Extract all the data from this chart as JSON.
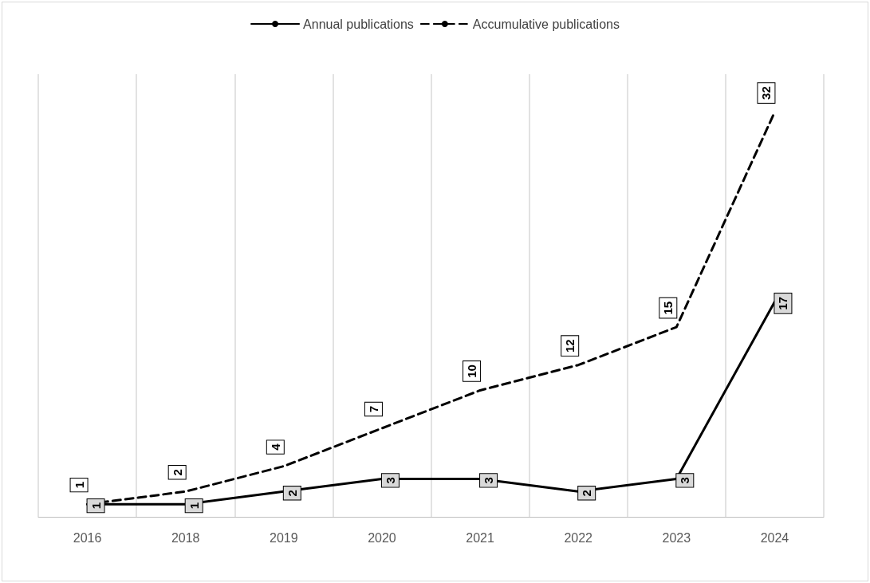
{
  "chart_data": {
    "type": "line",
    "categories": [
      "2016",
      "2018",
      "2019",
      "2020",
      "2021",
      "2022",
      "2023",
      "2024"
    ],
    "series": [
      {
        "name": "Annual publications",
        "color": "#000000",
        "line_style": "solid",
        "values": [
          1,
          1,
          2,
          3,
          3,
          2,
          3,
          17
        ]
      },
      {
        "name": "Accumulative publications",
        "color": "#000000",
        "line_style": "dashed",
        "values": [
          1,
          2,
          4,
          7,
          10,
          12,
          15,
          32
        ]
      }
    ],
    "data_labels": true,
    "grid": "x",
    "legend": "top",
    "marker": "none"
  }
}
